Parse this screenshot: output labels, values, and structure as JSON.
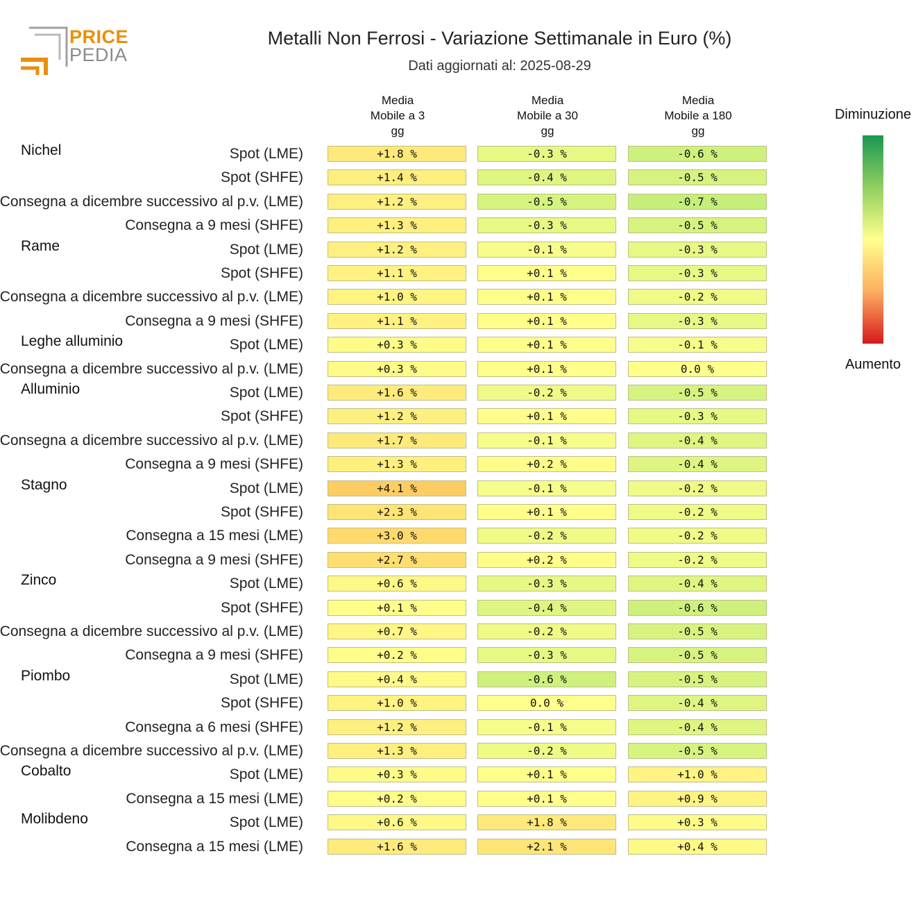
{
  "logo": {
    "word1": "PRICE",
    "word2": "PEDIA"
  },
  "header": {
    "title": "Metalli Non Ferrosi - Variazione Settimanale in Euro (%)",
    "subtitle": "Dati aggiornati al: 2025-08-29"
  },
  "legend": {
    "top_label": "Diminuzione",
    "bottom_label": "Aumento",
    "colors": [
      "#1a9850",
      "#91cf60",
      "#ffff8c",
      "#fdae61",
      "#d7191c"
    ]
  },
  "chart_data": {
    "type": "heatmap",
    "columns": [
      [
        "Media",
        "Mobile a 3",
        "gg"
      ],
      [
        "Media",
        "Mobile a 30",
        "gg"
      ],
      [
        "Media",
        "Mobile a 180",
        "gg"
      ]
    ],
    "rows": [
      {
        "group": "Nichel",
        "label": "Spot (LME)",
        "values": [
          "+1.8 %",
          "-0.3 %",
          "-0.6 %"
        ]
      },
      {
        "group": "",
        "label": "Spot (SHFE)",
        "values": [
          "+1.4 %",
          "-0.4 %",
          "-0.5 %"
        ]
      },
      {
        "group": "",
        "label": "Consegna a dicembre successivo al p.v. (LME)",
        "values": [
          "+1.2 %",
          "-0.5 %",
          "-0.7 %"
        ]
      },
      {
        "group": "",
        "label": "Consegna a 9 mesi (SHFE)",
        "values": [
          "+1.3 %",
          "-0.3 %",
          "-0.5 %"
        ]
      },
      {
        "group": "Rame",
        "label": "Spot (LME)",
        "values": [
          "+1.2 %",
          "-0.1 %",
          "-0.3 %"
        ]
      },
      {
        "group": "",
        "label": "Spot (SHFE)",
        "values": [
          "+1.1 %",
          "+0.1 %",
          "-0.3 %"
        ]
      },
      {
        "group": "",
        "label": "Consegna a dicembre successivo al p.v. (LME)",
        "values": [
          "+1.0 %",
          "+0.1 %",
          "-0.2 %"
        ]
      },
      {
        "group": "",
        "label": "Consegna a 9 mesi (SHFE)",
        "values": [
          "+1.1 %",
          "+0.1 %",
          "-0.3 %"
        ]
      },
      {
        "group": "Leghe alluminio",
        "label": "Spot (LME)",
        "values": [
          "+0.3 %",
          "+0.1 %",
          "-0.1 %"
        ]
      },
      {
        "group": "",
        "label": "Consegna a dicembre successivo al p.v. (LME)",
        "values": [
          "+0.3 %",
          "+0.1 %",
          "0.0 %"
        ]
      },
      {
        "group": "Alluminio",
        "label": "Spot (LME)",
        "values": [
          "+1.6 %",
          "-0.2 %",
          "-0.5 %"
        ]
      },
      {
        "group": "",
        "label": "Spot (SHFE)",
        "values": [
          "+1.2 %",
          "+0.1 %",
          "-0.3 %"
        ]
      },
      {
        "group": "",
        "label": "Consegna a dicembre successivo al p.v. (LME)",
        "values": [
          "+1.7 %",
          "-0.1 %",
          "-0.4 %"
        ]
      },
      {
        "group": "",
        "label": "Consegna a 9 mesi (SHFE)",
        "values": [
          "+1.3 %",
          "+0.2 %",
          "-0.4 %"
        ]
      },
      {
        "group": "Stagno",
        "label": "Spot (LME)",
        "values": [
          "+4.1 %",
          "-0.1 %",
          "-0.2 %"
        ]
      },
      {
        "group": "",
        "label": "Spot (SHFE)",
        "values": [
          "+2.3 %",
          "+0.1 %",
          "-0.2 %"
        ]
      },
      {
        "group": "",
        "label": "Consegna a 15 mesi (LME)",
        "values": [
          "+3.0 %",
          "-0.2 %",
          "-0.2 %"
        ]
      },
      {
        "group": "",
        "label": "Consegna a 9 mesi (SHFE)",
        "values": [
          "+2.7 %",
          "+0.2 %",
          "-0.2 %"
        ]
      },
      {
        "group": "Zinco",
        "label": "Spot (LME)",
        "values": [
          "+0.6 %",
          "-0.3 %",
          "-0.4 %"
        ]
      },
      {
        "group": "",
        "label": "Spot (SHFE)",
        "values": [
          "+0.1 %",
          "-0.4 %",
          "-0.6 %"
        ]
      },
      {
        "group": "",
        "label": "Consegna a dicembre successivo al p.v. (LME)",
        "values": [
          "+0.7 %",
          "-0.2 %",
          "-0.5 %"
        ]
      },
      {
        "group": "",
        "label": "Consegna a 9 mesi (SHFE)",
        "values": [
          "+0.2 %",
          "-0.3 %",
          "-0.5 %"
        ]
      },
      {
        "group": "Piombo",
        "label": "Spot (LME)",
        "values": [
          "+0.4 %",
          "-0.6 %",
          "-0.5 %"
        ]
      },
      {
        "group": "",
        "label": "Spot (SHFE)",
        "values": [
          "+1.0 %",
          "0.0 %",
          "-0.4 %"
        ]
      },
      {
        "group": "",
        "label": "Consegna a 6 mesi (SHFE)",
        "values": [
          "+1.2 %",
          "-0.1 %",
          "-0.4 %"
        ]
      },
      {
        "group": "",
        "label": "Consegna a dicembre successivo al p.v. (LME)",
        "values": [
          "+1.3 %",
          "-0.2 %",
          "-0.5 %"
        ]
      },
      {
        "group": "Cobalto",
        "label": "Spot (LME)",
        "values": [
          "+0.3 %",
          "+0.1 %",
          "+1.0 %"
        ]
      },
      {
        "group": "",
        "label": "Consegna a 15 mesi (LME)",
        "values": [
          "+0.2 %",
          "+0.1 %",
          "+0.9 %"
        ]
      },
      {
        "group": "Molibdeno",
        "label": "Spot (LME)",
        "values": [
          "+0.6 %",
          "+1.8 %",
          "+0.3 %"
        ]
      },
      {
        "group": "",
        "label": "Consegna a 15 mesi (LME)",
        "values": [
          "+1.6 %",
          "+2.1 %",
          "+0.4 %"
        ]
      }
    ]
  }
}
